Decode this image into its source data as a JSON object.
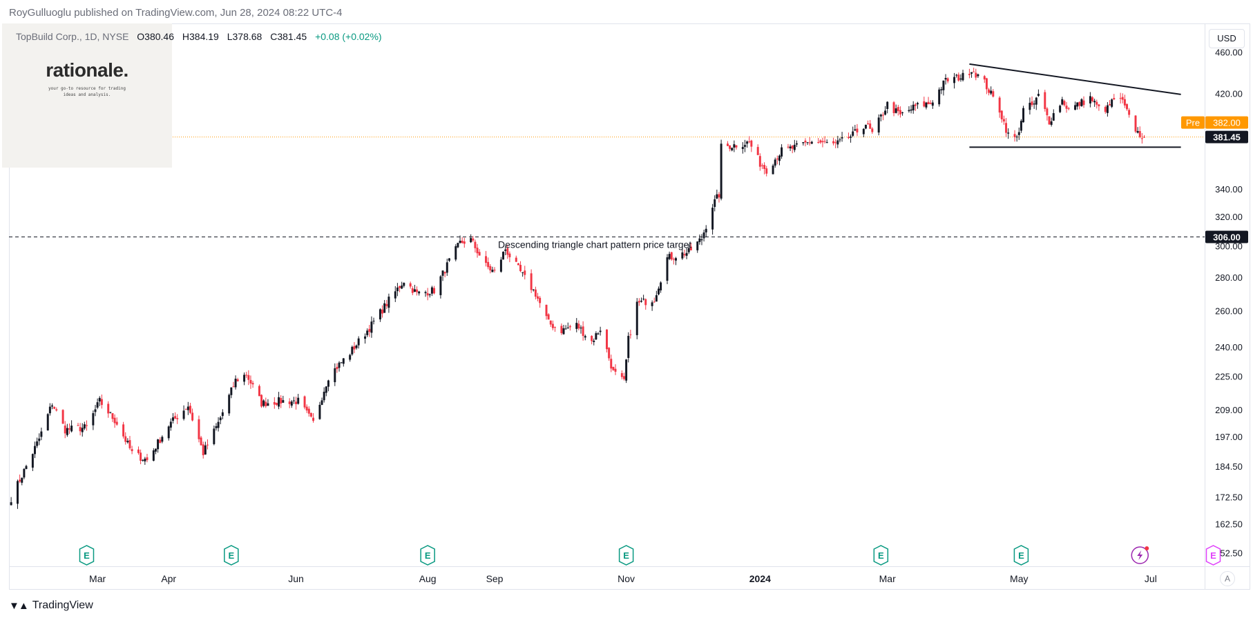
{
  "header": {
    "publisher": "RoyGulluoglu published on TradingView.com, Jun 28, 2024 08:22 UTC-4"
  },
  "watermark": {
    "logo": "rationale.",
    "tagline_1": "your go-to resource for trading",
    "tagline_2": "ideas and analysis."
  },
  "legend": {
    "symbol": "TopBuild Corp., 1D, NYSE",
    "open": "O380.46",
    "high": "H384.19",
    "low": "L378.68",
    "close": "C381.45",
    "change": "+0.08 (+0.02%)"
  },
  "controls": {
    "currency": "USD",
    "auto_scale": "A"
  },
  "footer": {
    "brand": "TradingView",
    "brand_icon": "tradingview-logo-icon"
  },
  "colors": {
    "up": "#131722",
    "down": "#f23645",
    "pre_badge": "#ff9800",
    "last_badge": "#131722",
    "earnings": "#089981",
    "dividends": "#9c27b0",
    "future_earnings": "#e040fb"
  },
  "chart_data": {
    "type": "candlestick",
    "title": "TopBuild Corp., 1D, NYSE",
    "scale": "log",
    "ylim": [
      148,
      490
    ],
    "y_ticks": [
      "460.00",
      "420.00",
      "340.00",
      "320.00",
      "300.00",
      "280.00",
      "260.00",
      "240.00",
      "225.00",
      "209.00",
      "197.00",
      "184.50",
      "172.50",
      "162.50",
      "152.50"
    ],
    "y_tick_values": [
      460,
      420,
      340,
      320,
      300,
      280,
      260,
      240,
      225,
      209,
      197,
      184.5,
      172.5,
      162.5,
      152.5
    ],
    "x_range": [
      "2023-01-19",
      "2024-07-26"
    ],
    "x_ticks": [
      {
        "label": "Mar",
        "date": "2023-03-01",
        "bold": false
      },
      {
        "label": "Apr",
        "date": "2023-04-03",
        "bold": false
      },
      {
        "label": "Jun",
        "date": "2023-06-01",
        "bold": false
      },
      {
        "label": "Aug",
        "date": "2023-08-01",
        "bold": false
      },
      {
        "label": "Sep",
        "date": "2023-09-01",
        "bold": false
      },
      {
        "label": "Nov",
        "date": "2023-11-01",
        "bold": false
      },
      {
        "label": "2024",
        "date": "2024-01-02",
        "bold": true
      },
      {
        "label": "Mar",
        "date": "2024-03-01",
        "bold": false
      },
      {
        "label": "May",
        "date": "2024-05-01",
        "bold": false
      },
      {
        "label": "Jul",
        "date": "2024-07-01",
        "bold": false
      }
    ],
    "anchors": [
      [
        "2023-01-20",
        172
      ],
      [
        "2023-02-02",
        196
      ],
      [
        "2023-02-08",
        212
      ],
      [
        "2023-02-14",
        200
      ],
      [
        "2023-02-24",
        201
      ],
      [
        "2023-03-02",
        213
      ],
      [
        "2023-03-10",
        203
      ],
      [
        "2023-03-17",
        190
      ],
      [
        "2023-03-24",
        187
      ],
      [
        "2023-04-03",
        202
      ],
      [
        "2023-04-12",
        211
      ],
      [
        "2023-04-19",
        190
      ],
      [
        "2023-04-26",
        203
      ],
      [
        "2023-05-04",
        223
      ],
      [
        "2023-05-09",
        226
      ],
      [
        "2023-05-16",
        212
      ],
      [
        "2023-05-24",
        213
      ],
      [
        "2023-06-02",
        213
      ],
      [
        "2023-06-09",
        203
      ],
      [
        "2023-06-16",
        225
      ],
      [
        "2023-06-26",
        237
      ],
      [
        "2023-07-06",
        252
      ],
      [
        "2023-07-14",
        266
      ],
      [
        "2023-07-21",
        278
      ],
      [
        "2023-07-27",
        270
      ],
      [
        "2023-08-04",
        272
      ],
      [
        "2023-08-11",
        290
      ],
      [
        "2023-08-16",
        302
      ],
      [
        "2023-08-21",
        304
      ],
      [
        "2023-08-28",
        287
      ],
      [
        "2023-09-01",
        283
      ],
      [
        "2023-09-06",
        298
      ],
      [
        "2023-09-12",
        285
      ],
      [
        "2023-09-20",
        270
      ],
      [
        "2023-09-26",
        253
      ],
      [
        "2023-10-02",
        249
      ],
      [
        "2023-10-09",
        252
      ],
      [
        "2023-10-16",
        243
      ],
      [
        "2023-10-20",
        250
      ],
      [
        "2023-10-26",
        227
      ],
      [
        "2023-10-31",
        222
      ],
      [
        "2023-11-02",
        244
      ],
      [
        "2023-11-06",
        264
      ],
      [
        "2023-11-14",
        267
      ],
      [
        "2023-11-20",
        292
      ],
      [
        "2023-11-30",
        296
      ],
      [
        "2023-12-06",
        305
      ],
      [
        "2023-12-11",
        328
      ],
      [
        "2023-12-14",
        336
      ],
      [
        "2023-12-15",
        373
      ],
      [
        "2023-12-22",
        375
      ],
      [
        "2023-12-28",
        377
      ],
      [
        "2024-01-02",
        360
      ],
      [
        "2024-01-05",
        355
      ],
      [
        "2024-01-12",
        370
      ],
      [
        "2024-01-19",
        373
      ],
      [
        "2024-01-26",
        378
      ],
      [
        "2024-02-06",
        375
      ],
      [
        "2024-02-14",
        383
      ],
      [
        "2024-02-20",
        393
      ],
      [
        "2024-02-23",
        384
      ],
      [
        "2024-03-01",
        410
      ],
      [
        "2024-03-07",
        400
      ],
      [
        "2024-03-14",
        408
      ],
      [
        "2024-03-21",
        411
      ],
      [
        "2024-03-28",
        432
      ],
      [
        "2024-04-05",
        436
      ],
      [
        "2024-04-09",
        443
      ],
      [
        "2024-04-15",
        430
      ],
      [
        "2024-04-22",
        405
      ],
      [
        "2024-04-26",
        383
      ],
      [
        "2024-04-30",
        380
      ],
      [
        "2024-05-03",
        405
      ],
      [
        "2024-05-08",
        410
      ],
      [
        "2024-05-10",
        418
      ],
      [
        "2024-05-15",
        395
      ],
      [
        "2024-05-21",
        414
      ],
      [
        "2024-05-24",
        405
      ],
      [
        "2024-06-03",
        416
      ],
      [
        "2024-06-07",
        406
      ],
      [
        "2024-06-11",
        406
      ],
      [
        "2024-06-14",
        415
      ],
      [
        "2024-06-18",
        412
      ],
      [
        "2024-06-21",
        398
      ],
      [
        "2024-06-25",
        385
      ],
      [
        "2024-06-28",
        381.45
      ]
    ],
    "last_close": 381.45,
    "premarket": 382.0,
    "premarket_label": "Pre",
    "levels": [
      {
        "name": "descending-triangle-target",
        "value": 306.0,
        "style": "dashed",
        "label": "Descending triangle chart pattern price target"
      },
      {
        "name": "current-price",
        "value": 381.45,
        "style": "dotted"
      }
    ],
    "trendlines": [
      {
        "name": "triangle-resistance",
        "from": [
          "2024-04-08",
          448
        ],
        "to": [
          "2024-07-15",
          419
        ]
      },
      {
        "name": "triangle-support",
        "from": [
          "2024-04-08",
          373
        ],
        "to": [
          "2024-07-15",
          373
        ]
      }
    ],
    "earnings": [
      "2023-02-24",
      "2023-05-02",
      "2023-08-01",
      "2023-11-01",
      "2024-02-27",
      "2024-05-02"
    ],
    "dividends": [
      "2024-06-26"
    ],
    "future_earnings": [
      "2024-07-30"
    ]
  }
}
